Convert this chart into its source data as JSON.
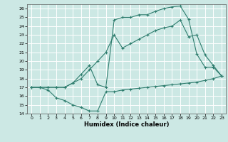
{
  "xlabel": "Humidex (Indice chaleur)",
  "bg_color": "#cce8e4",
  "grid_color": "#ffffff",
  "line_color": "#2e7d6e",
  "xlim": [
    -0.5,
    23.5
  ],
  "ylim": [
    14,
    26.5
  ],
  "xticks": [
    0,
    1,
    2,
    3,
    4,
    5,
    6,
    7,
    8,
    9,
    10,
    11,
    12,
    13,
    14,
    15,
    16,
    17,
    18,
    19,
    20,
    21,
    22,
    23
  ],
  "yticks": [
    14,
    15,
    16,
    17,
    18,
    19,
    20,
    21,
    22,
    23,
    24,
    25,
    26
  ],
  "line1_x": [
    0,
    1,
    2,
    3,
    4,
    5,
    6,
    7,
    8,
    9,
    10,
    11,
    12,
    13,
    14,
    15,
    16,
    17,
    18,
    19,
    20,
    21,
    22,
    23
  ],
  "line1_y": [
    17,
    17,
    16.7,
    15.8,
    15.5,
    15.0,
    14.7,
    14.3,
    14.3,
    16.5,
    16.5,
    16.7,
    16.8,
    16.9,
    17.0,
    17.1,
    17.2,
    17.3,
    17.4,
    17.5,
    17.6,
    17.8,
    18.0,
    18.3
  ],
  "line2_x": [
    0,
    1,
    2,
    3,
    4,
    5,
    6,
    7,
    8,
    9,
    10,
    11,
    12,
    13,
    14,
    15,
    16,
    17,
    18,
    19,
    20,
    21,
    22,
    23
  ],
  "line2_y": [
    17,
    17,
    17,
    17,
    17,
    17.5,
    18.5,
    19.5,
    17.3,
    17.0,
    24.7,
    25.0,
    25.0,
    25.3,
    25.3,
    25.7,
    26.0,
    26.2,
    26.3,
    24.8,
    20.8,
    19.3,
    19.3,
    18.3
  ],
  "line3_x": [
    0,
    1,
    2,
    3,
    4,
    5,
    6,
    7,
    8,
    9,
    10,
    11,
    12,
    13,
    14,
    15,
    16,
    17,
    18,
    19,
    20,
    21,
    22,
    23
  ],
  "line3_y": [
    17,
    17,
    17,
    17,
    17,
    17.5,
    18,
    19,
    20,
    21,
    23.0,
    21.5,
    22.0,
    22.5,
    23.0,
    23.5,
    23.8,
    24.0,
    24.7,
    22.8,
    23.0,
    20.7,
    19.5,
    18.3
  ]
}
